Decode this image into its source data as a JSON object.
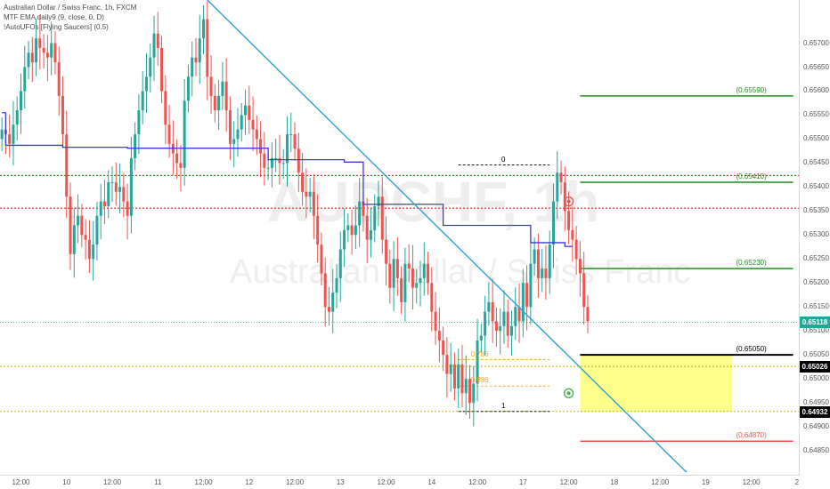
{
  "legend": {
    "title": "Australian Dollar / Swiss Franc, 1h, FXCM",
    "ema": "MTF EMA daily9 (9, close, 0, D)",
    "ufo": "!AutoUFOs [Flying Saucers] (0.5)"
  },
  "watermark": {
    "symbol": "AUDCHF, 1h",
    "name": "Australian Dollar / Swiss Franc"
  },
  "colors": {
    "bull": "#26a69a",
    "bear": "#ef5350",
    "ema": "#3b3bd6",
    "trendline": "#2a9fd8",
    "red_level": "#e00000",
    "green_level": "#1e8c1e",
    "yellow_level": "#bdbd00",
    "current_price": "#26a69a",
    "zone_fill": "#ffff66",
    "fib": "#f0a020"
  },
  "chart_data": {
    "type": "candlestick",
    "symbol": "AUDCHF",
    "timeframe": "1h",
    "y_axis": {
      "ylim": [
        0.648,
        0.6579
      ],
      "tick_labels": [
        "0.65700",
        "0.65650",
        "0.65600",
        "0.65550",
        "0.65500",
        "0.65450",
        "0.65400",
        "0.65350",
        "0.65300",
        "0.65250",
        "0.65200",
        "0.65150",
        "0.65100",
        "0.65050",
        "0.65000",
        "0.64950",
        "0.64900",
        "0.64850"
      ]
    },
    "x_axis": {
      "tick_labels": [
        {
          "label": "12:00",
          "slot": 5
        },
        {
          "label": "10",
          "slot": 17
        },
        {
          "label": "12:00",
          "slot": 29
        },
        {
          "label": "11",
          "slot": 41
        },
        {
          "label": "12:00",
          "slot": 53
        },
        {
          "label": "12",
          "slot": 65
        },
        {
          "label": "12:00",
          "slot": 77
        },
        {
          "label": "13",
          "slot": 89
        },
        {
          "label": "12:00",
          "slot": 101
        },
        {
          "label": "14",
          "slot": 113
        },
        {
          "label": "12:00",
          "slot": 125
        },
        {
          "label": "17",
          "slot": 137
        },
        {
          "label": "12:00",
          "slot": 149
        },
        {
          "label": "18",
          "slot": 161
        },
        {
          "label": "12:00",
          "slot": 173
        },
        {
          "label": "19",
          "slot": 185
        },
        {
          "label": "12:00",
          "slot": 197
        },
        {
          "label": "2",
          "slot": 209
        }
      ],
      "total_slots": 210
    },
    "candle_closes": [
      0.6552,
      0.6551,
      0.6549,
      0.6553,
      0.6556,
      0.656,
      0.6565,
      0.6568,
      0.6566,
      0.6571,
      0.6569,
      0.6568,
      0.6567,
      0.657,
      0.6566,
      0.6559,
      0.6551,
      0.6538,
      0.6526,
      0.6532,
      0.6534,
      0.653,
      0.6529,
      0.6525,
      0.6528,
      0.6534,
      0.6537,
      0.6536,
      0.6541,
      0.6541,
      0.6539,
      0.654,
      0.6537,
      0.6534,
      0.6546,
      0.6551,
      0.6556,
      0.656,
      0.6563,
      0.6567,
      0.6572,
      0.6569,
      0.656,
      0.6553,
      0.6549,
      0.6547,
      0.6545,
      0.6544,
      0.6558,
      0.6563,
      0.6567,
      0.6566,
      0.6571,
      0.6575,
      0.6563,
      0.6559,
      0.6556,
      0.6559,
      0.6562,
      0.6556,
      0.6549,
      0.655,
      0.6552,
      0.6555,
      0.6557,
      0.6554,
      0.6552,
      0.655,
      0.6547,
      0.6544,
      0.6544,
      0.6546,
      0.6546,
      0.6545,
      0.6545,
      0.6551,
      0.6551,
      0.6548,
      0.6543,
      0.6539,
      0.6538,
      0.6539,
      0.6534,
      0.6528,
      0.6522,
      0.6515,
      0.6514,
      0.6518,
      0.6521,
      0.6527,
      0.6531,
      0.6532,
      0.653,
      0.6532,
      0.6537,
      0.6534,
      0.6529,
      0.6531,
      0.6536,
      0.6538,
      0.6529,
      0.6524,
      0.6519,
      0.6525,
      0.6521,
      0.6516,
      0.6524,
      0.6523,
      0.6519,
      0.652,
      0.6521,
      0.6524,
      0.652,
      0.6514,
      0.651,
      0.6508,
      0.6505,
      0.6501,
      0.6503,
      0.6498,
      0.6503,
      0.6497,
      0.65,
      0.6495,
      0.6499,
      0.6508,
      0.6509,
      0.6514,
      0.6516,
      0.6512,
      0.651,
      0.6511,
      0.6514,
      0.6509,
      0.6511,
      0.6515,
      0.6512,
      0.652,
      0.6515,
      0.6524,
      0.6527,
      0.6521,
      0.6523,
      0.6521,
      0.6528,
      0.6537,
      0.6543,
      0.6541,
      0.6535,
      0.6531,
      0.6529,
      0.6525,
      0.6522,
      0.6515,
      0.6512
    ],
    "series": [
      {
        "name": "MTF EMA daily9",
        "steps": [
          {
            "from_slot": 0,
            "to_slot": 1,
            "value": 0.65555
          },
          {
            "from_slot": 1,
            "to_slot": 16,
            "value": 0.65487
          },
          {
            "from_slot": 16,
            "to_slot": 33,
            "value": 0.65483
          },
          {
            "from_slot": 33,
            "to_slot": 70,
            "value": 0.65481
          },
          {
            "from_slot": 70,
            "to_slot": 90,
            "value": 0.65457
          },
          {
            "from_slot": 90,
            "to_slot": 95,
            "value": 0.65452
          },
          {
            "from_slot": 95,
            "to_slot": 116,
            "value": 0.65364
          },
          {
            "from_slot": 116,
            "to_slot": 139,
            "value": 0.6532
          },
          {
            "from_slot": 139,
            "to_slot": 148,
            "value": 0.65284
          },
          {
            "from_slot": 148,
            "to_slot": 150,
            "value": 0.65276
          }
        ]
      }
    ],
    "price_labels": {
      "current": "0.65118",
      "yellow_upper": "0.65026",
      "yellow_lower": "0.64932"
    },
    "levels": [
      {
        "kind": "red_dotted",
        "value": 0.65424
      },
      {
        "kind": "red_dotted",
        "value": 0.65356
      },
      {
        "kind": "yellow_dotted",
        "value": 0.65026
      },
      {
        "kind": "yellow_dotted",
        "value": 0.64932
      },
      {
        "kind": "current",
        "value": 0.65118
      }
    ],
    "target_levels": [
      {
        "label": "(0.65590)",
        "value": 0.6559,
        "color": "green"
      },
      {
        "label": "(0.65410)",
        "value": 0.6541,
        "color": "green"
      },
      {
        "label": "(0.65230)",
        "value": 0.6523,
        "color": "green"
      },
      {
        "label": "(0.65050)",
        "value": 0.6505,
        "color": "black"
      },
      {
        "label": "(0.64870)",
        "value": 0.6487,
        "color": "red"
      }
    ],
    "zone": {
      "top": 0.6505,
      "bottom": 0.64932,
      "from_slot": 152,
      "to_slot": 192
    },
    "fib": [
      {
        "label": "0",
        "value": 0.65446
      },
      {
        "label": "0.786",
        "value": 0.6504
      },
      {
        "label": "0.886",
        "value": 0.64985
      },
      {
        "label": "1",
        "value": 0.64932
      }
    ],
    "fib_range": {
      "from_slot": 120,
      "to_slot": 144
    },
    "trendline": {
      "from_slot": 54,
      "from_value": 0.6579,
      "to_slot": 180,
      "to_value": 0.64805
    },
    "ufo_markers": [
      {
        "type": "red",
        "slot": 149,
        "value": 0.6537
      },
      {
        "type": "green",
        "slot": 149,
        "value": 0.6497
      }
    ]
  }
}
